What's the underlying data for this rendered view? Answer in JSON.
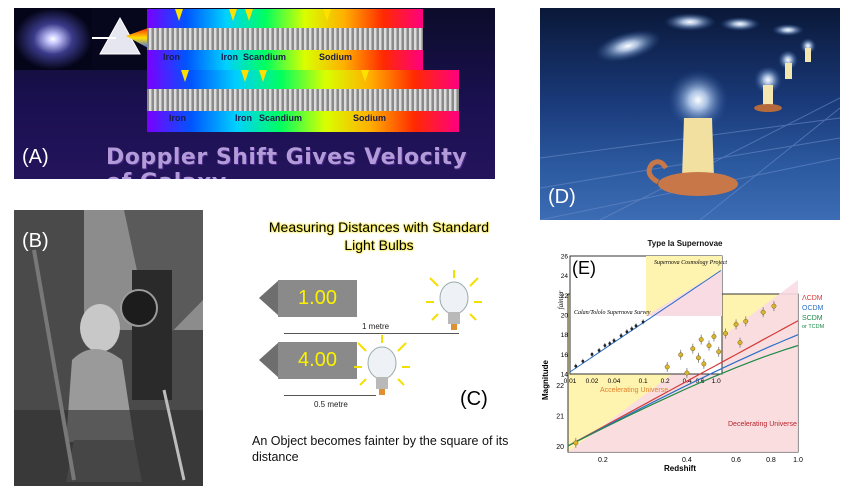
{
  "panelA": {
    "letter": "(A)",
    "title": "Doppler Shift Gives Velocity of Galaxy",
    "spectrum_top_labels": [
      "Iron",
      "Iron",
      "Scandium",
      "Sodium"
    ],
    "spectrum_bottom_labels": [
      "Iron",
      "Iron",
      "Scandium",
      "Sodium"
    ]
  },
  "panelB": {
    "letter": "(B)"
  },
  "panelC": {
    "letter": "(C)",
    "title_line1": "Measuring Distances with Standard",
    "title_line2": "Light Bulbs",
    "box1_value": "1.00",
    "box2_value": "4.00",
    "dist1": "1 metre",
    "dist2": "0.5 metre",
    "caption": "An Object becomes fainter by the square of its distance"
  },
  "panelD": {
    "letter": "(D)"
  },
  "panelE": {
    "letter": "(E)",
    "chart_data": {
      "type": "scatter",
      "title": "Type Ia Supernovae",
      "xlabel": "Redshift",
      "ylabel": "Magnitude",
      "inset_ylabel": "fainter",
      "x_ticks_main": [
        "0.2",
        "0.4",
        "0.6",
        "0.8",
        "1.0"
      ],
      "y_ticks_main": [
        "20",
        "21",
        "22"
      ],
      "x_ticks_inset": [
        "0.01",
        "0.02",
        "0.04",
        "0.1",
        "0.2",
        "0.4",
        "0.6",
        "1.0"
      ],
      "y_ticks_inset": [
        "14",
        "16",
        "18",
        "20",
        "22",
        "24",
        "26"
      ],
      "region_labels": [
        "Accelerating Universe",
        "Decelerating Universe"
      ],
      "survey_labels": [
        "Calan/Tololo Supernova Survey",
        "Supernova Cosmology Project"
      ],
      "series": [
        {
          "name": "ΛCDM",
          "color": "#d43a3a"
        },
        {
          "name": "OCDM",
          "color": "#2a6fc8"
        },
        {
          "name": "SCDM",
          "color": "#1e8a4a"
        },
        {
          "name": "or TCDM",
          "color": "#1e8a4a"
        }
      ],
      "points_main": [
        {
          "x": 0.16,
          "y": 20.1
        },
        {
          "x": 0.34,
          "y": 22.6
        },
        {
          "x": 0.38,
          "y": 23.0
        },
        {
          "x": 0.4,
          "y": 22.4
        },
        {
          "x": 0.42,
          "y": 23.2
        },
        {
          "x": 0.44,
          "y": 22.9
        },
        {
          "x": 0.45,
          "y": 23.5
        },
        {
          "x": 0.46,
          "y": 22.7
        },
        {
          "x": 0.48,
          "y": 23.3
        },
        {
          "x": 0.5,
          "y": 23.6
        },
        {
          "x": 0.52,
          "y": 23.1
        },
        {
          "x": 0.55,
          "y": 23.7
        },
        {
          "x": 0.6,
          "y": 24.0
        },
        {
          "x": 0.62,
          "y": 23.4
        },
        {
          "x": 0.65,
          "y": 24.1
        },
        {
          "x": 0.75,
          "y": 24.4
        },
        {
          "x": 0.82,
          "y": 24.6
        }
      ],
      "points_inset": [
        {
          "x": 0.012,
          "y": 14.8
        },
        {
          "x": 0.015,
          "y": 15.3
        },
        {
          "x": 0.02,
          "y": 16.0
        },
        {
          "x": 0.025,
          "y": 16.4
        },
        {
          "x": 0.03,
          "y": 16.9
        },
        {
          "x": 0.035,
          "y": 17.1
        },
        {
          "x": 0.04,
          "y": 17.4
        },
        {
          "x": 0.05,
          "y": 17.9
        },
        {
          "x": 0.06,
          "y": 18.3
        },
        {
          "x": 0.07,
          "y": 18.6
        },
        {
          "x": 0.08,
          "y": 18.9
        },
        {
          "x": 0.1,
          "y": 19.3
        }
      ]
    }
  }
}
